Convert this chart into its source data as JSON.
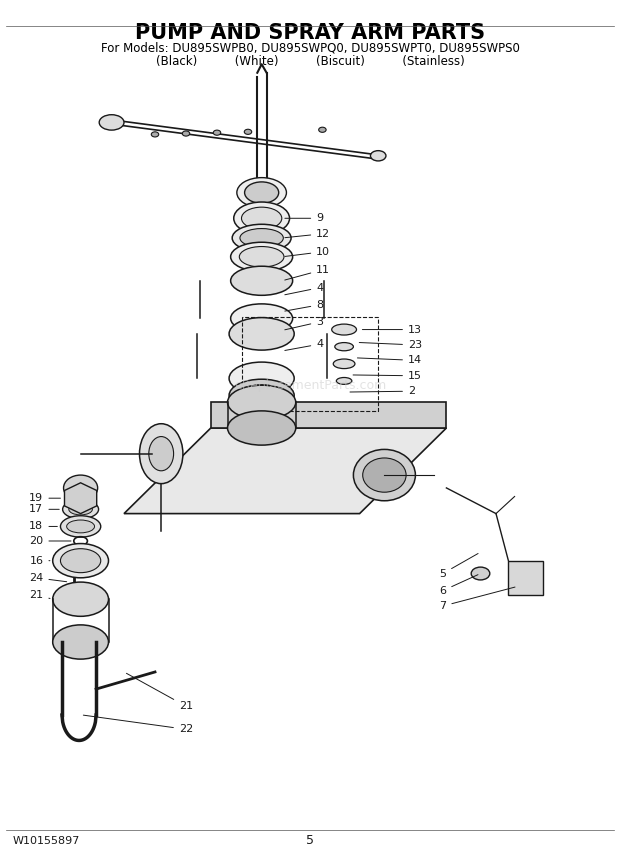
{
  "title": "PUMP AND SPRAY ARM PARTS",
  "subtitle": "For Models: DU895SWPB0, DU895SWPQ0, DU895SWPT0, DU895SWPS0",
  "subtitle2": "(Black)          (White)          (Biscuit)          (Stainless)",
  "watermark": "eReplacementParts.com",
  "part_number": "W10155897",
  "page_number": "5",
  "bg_color": "#ffffff",
  "title_fontsize": 15,
  "subtitle_fontsize": 8.5,
  "subtitle2_fontsize": 8.5
}
